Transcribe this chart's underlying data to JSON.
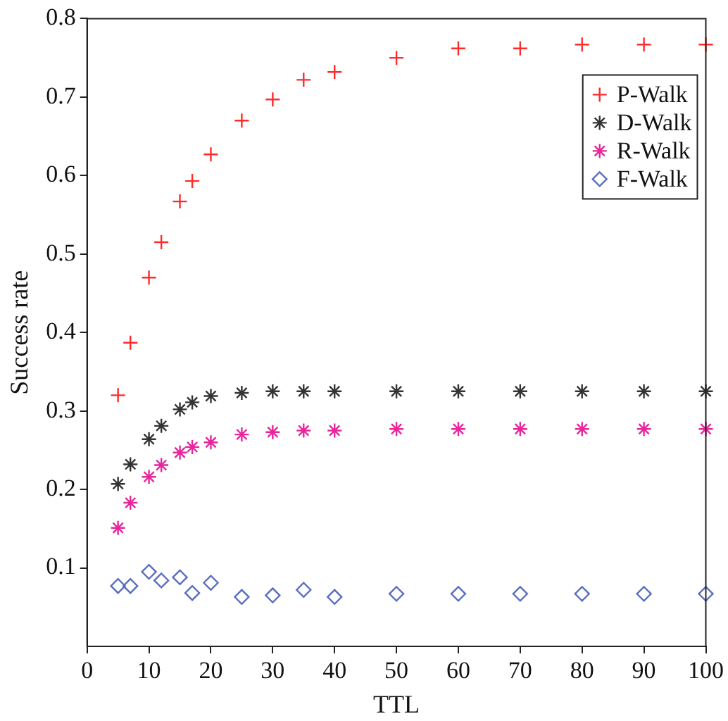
{
  "chart_data": {
    "type": "scatter",
    "xlabel": "TTL",
    "ylabel": "Success rate",
    "x": [
      5,
      7,
      10,
      12,
      15,
      17,
      20,
      25,
      30,
      35,
      40,
      50,
      60,
      70,
      80,
      90,
      100
    ],
    "series": [
      {
        "name": "P-Walk",
        "color": "#ff2a2a",
        "values": [
          0.32,
          0.387,
          0.47,
          0.515,
          0.567,
          0.593,
          0.627,
          0.67,
          0.697,
          0.722,
          0.732,
          0.75,
          0.762,
          0.762,
          0.767,
          0.767,
          0.767
        ]
      },
      {
        "name": "D-Walk",
        "color": "#333333",
        "marker": "cross",
        "values": [
          0.207,
          0.232,
          0.264,
          0.281,
          0.302,
          0.311,
          0.319,
          0.323,
          0.325,
          0.325,
          0.325,
          0.325,
          0.325,
          0.325,
          0.325,
          0.325,
          0.325
        ]
      },
      {
        "name": "R-Walk",
        "color": "#e8259a",
        "marker": "cross",
        "values": [
          0.151,
          0.183,
          0.216,
          0.231,
          0.247,
          0.254,
          0.26,
          0.27,
          0.273,
          0.275,
          0.275,
          0.277,
          0.277,
          0.277,
          0.277,
          0.277,
          0.277
        ]
      },
      {
        "name": "F-Walk",
        "color": "#5a6fc0",
        "marker": "diamond",
        "values": [
          0.077,
          0.077,
          0.095,
          0.084,
          0.088,
          0.068,
          0.081,
          0.063,
          0.065,
          0.072,
          0.063,
          0.067,
          0.067,
          0.067,
          0.067,
          0.067,
          0.067
        ]
      }
    ],
    "xlim": [
      0,
      100
    ],
    "xticks": [
      0,
      10,
      20,
      30,
      40,
      50,
      60,
      70,
      80,
      90,
      100
    ],
    "ylim": [
      0,
      0.8
    ],
    "yticks": [
      0.1,
      0.2,
      0.3,
      0.4,
      0.5,
      0.6,
      0.7,
      0.8
    ],
    "grid": false,
    "legend": "top right"
  }
}
